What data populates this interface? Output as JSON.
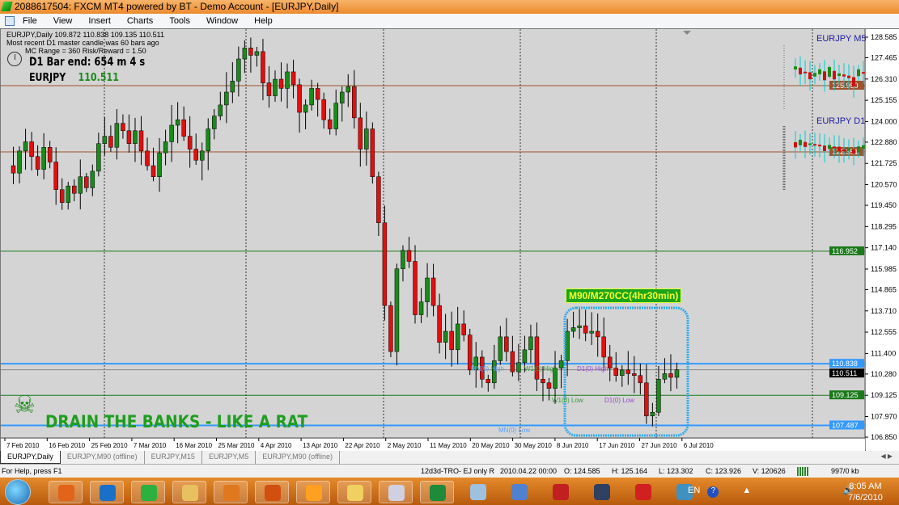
{
  "window": {
    "title": "2088617504: FXCM MT4 powered by BT - Demo Account - [EURJPY,Daily]"
  },
  "menu": [
    "File",
    "View",
    "Insert",
    "Charts",
    "Tools",
    "Window",
    "Help"
  ],
  "chart_info": {
    "line1": "EURJPY,Daily  109.872 110.838 109.135 110.511",
    "line2": "Most recent D1 master candle was 60 bars ago",
    "line3": "MC Range = 360  Risk/Reward = 1.50",
    "bar_end": "D1 Bar end: 654 m 4 s",
    "symbol": "EURJPY",
    "price": "110.511",
    "panel_m5": "EURJPY  M5",
    "panel_d1": "EURJPY  D1",
    "cc_label": "M90/M270CC(4hr30min)",
    "banner": "DRAIN THE BANKS - LIKE A RAT",
    "levels": {
      "mn_high": "MN(0) High",
      "w1_high": "W1(0) High",
      "d1_high": "D1(0) High",
      "w1_low": "W1(0) Low",
      "d1_low": "D1(0) Low",
      "mn_low": "MN(0) Low"
    }
  },
  "chart_data": {
    "type": "candlestick",
    "ylim": [
      106.85,
      128.585
    ],
    "y_ticks": [
      "128.585",
      "127.465",
      "126.310",
      "125.155",
      "124.000",
      "122.880",
      "121.725",
      "120.570",
      "119.450",
      "118.295",
      "117.140",
      "115.985",
      "114.865",
      "113.710",
      "112.555",
      "111.400",
      "110.280",
      "109.125",
      "107.970",
      "106.850"
    ],
    "x_ticks": [
      "7 Feb 2010",
      "16 Feb 2010",
      "25 Feb 2010",
      "7 Mar 2010",
      "16 Mar 2010",
      "25 Mar 2010",
      "4 Apr 2010",
      "13 Apr 2010",
      "22 Apr 2010",
      "2 May 2010",
      "11 May 2010",
      "20 May 2010",
      "30 May 2010",
      "8 Jun 2010",
      "17 Jun 2010",
      "27 Jun 2010",
      "6 Jul 2010"
    ],
    "closes": [
      121.6,
      121.2,
      122.4,
      122.9,
      122.1,
      121.4,
      122.6,
      121.8,
      120.3,
      119.6,
      120.5,
      120.1,
      121.0,
      120.4,
      121.3,
      122.8,
      123.2,
      122.6,
      123.9,
      123.5,
      122.8,
      123.5,
      122.4,
      121.6,
      121.0,
      122.3,
      122.9,
      123.8,
      124.1,
      123.2,
      122.5,
      121.9,
      122.4,
      123.6,
      124.3,
      124.9,
      125.6,
      126.2,
      127.4,
      128.0,
      127.6,
      127.8,
      126.1,
      125.4,
      126.3,
      125.8,
      126.7,
      126.0,
      124.5,
      124.9,
      125.8,
      125.2,
      124.1,
      123.6,
      125.0,
      125.6,
      125.9,
      124.2,
      122.5,
      123.6,
      121.0,
      118.5,
      114.0,
      111.5,
      116.0,
      117.0,
      116.4,
      113.5,
      114.2,
      115.5,
      114.0,
      112.0,
      112.6,
      111.6,
      113.0,
      112.4,
      110.5,
      111.2,
      110.0,
      109.8,
      111.0,
      112.3,
      111.5,
      110.4,
      110.9,
      111.6,
      112.3,
      110.0,
      109.8,
      109.5,
      110.6,
      111.0,
      112.6,
      112.8,
      112.9,
      112.5,
      112.6,
      112.3,
      111.2,
      110.6,
      110.2,
      110.5,
      110.3,
      110.2,
      109.8,
      108.0,
      108.2,
      110.0,
      110.3,
      110.1,
      110.511
    ],
    "price_lines": [
      {
        "price": 125.95,
        "label": "125.950",
        "color": "#a0522d"
      },
      {
        "price": 122.351,
        "label": "122.351",
        "color": "#a0522d"
      },
      {
        "price": 116.952,
        "label": "116.952",
        "color": "#1a7a1a"
      },
      {
        "price": 110.838,
        "label": "110.838",
        "color": "#3399ff"
      },
      {
        "price": 110.511,
        "label": "110.511",
        "color": "#000000"
      },
      {
        "price": 109.125,
        "label": "109.125",
        "color": "#1a7a1a"
      },
      {
        "price": 107.487,
        "label": "107.487",
        "color": "#3399ff"
      }
    ],
    "colors": {
      "bull": "#1a8a1a",
      "bear": "#e01010",
      "wick": "#000000"
    }
  },
  "tabs": [
    "EURJPY,Daily",
    "EURJPY,M90 (offline)",
    "EURJPY,M15",
    "EURJPY,M5",
    "EURJPY,M90 (offline)"
  ],
  "status": {
    "help": "For Help, press F1",
    "profile": "12d3d-TRO- EJ only R",
    "datetime": "2010.04.22 00:00",
    "open": "O: 124.585",
    "high": "H: 125.164",
    "low": "L: 123.302",
    "close": "C: 123.926",
    "volume": "V: 120626",
    "traffic": "997/0 kb"
  },
  "taskbar": {
    "lang": "EN",
    "time": "8:05 AM",
    "date": "7/6/2010",
    "apps": [
      "firefox",
      "app-z",
      "mt4",
      "explorer",
      "media-player",
      "app-tools",
      "app-orange",
      "folder",
      "calculator",
      "excel",
      "paint",
      "itunes",
      "app-pin",
      "app-stack",
      "acrobat",
      "photo-viewer"
    ]
  }
}
